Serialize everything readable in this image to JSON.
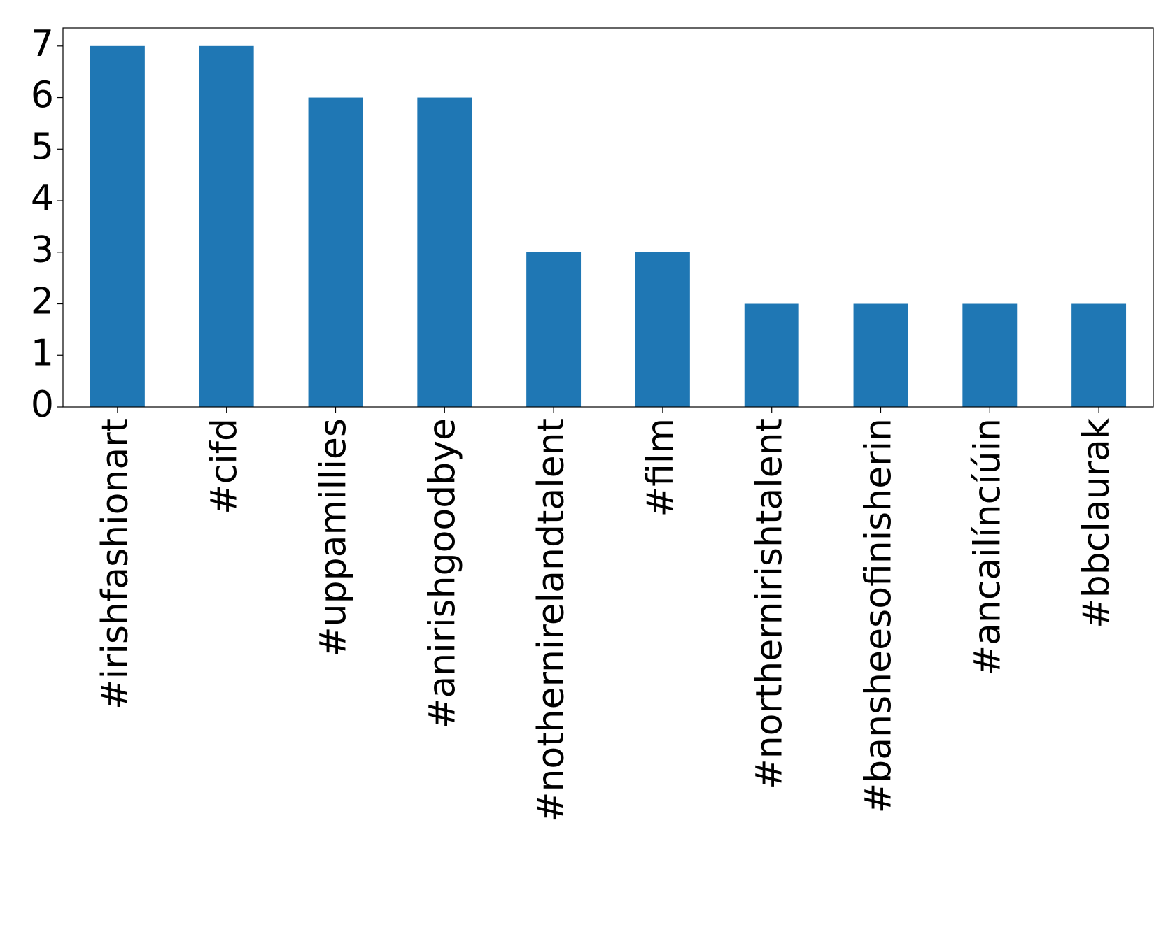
{
  "chart_data": {
    "type": "bar",
    "categories": [
      "#irishfashionart",
      "#cifd",
      "#uppamillies",
      "#anirishgoodbye",
      "#nothernirelandtalent",
      "#film",
      "#northernirishtalent",
      "#bansheesofinisherin",
      "#ancailíncíúin",
      "#bbclaurak"
    ],
    "values": [
      7,
      7,
      6,
      6,
      3,
      3,
      2,
      2,
      2,
      2
    ],
    "color": "#1f77b4",
    "ylim": [
      0,
      7.35
    ],
    "yticks": [
      0,
      1,
      2,
      3,
      4,
      5,
      6,
      7
    ],
    "grid": false
  }
}
